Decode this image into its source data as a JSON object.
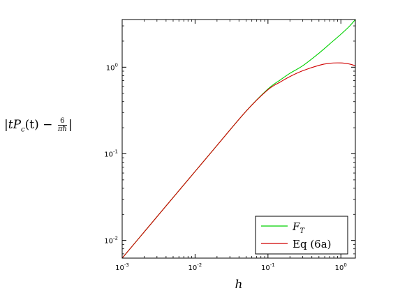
{
  "chart_data": {
    "type": "line",
    "xscale": "log",
    "yscale": "log",
    "xlim": [
      0.001,
      1.58
    ],
    "ylim": [
      0.00625,
      3.55
    ],
    "xlabel": "h",
    "ylabel": "|tP_c(t) − 6/(πh)|",
    "ylabel_parts": {
      "bars_open": "|",
      "t": "t",
      "P": "P",
      "sub": "c",
      "arg": "(t)",
      "minus": " − ",
      "num": "6",
      "den": "πħ",
      "bars_close": "|"
    },
    "xticks": [
      {
        "value": 0.001,
        "base": "10",
        "exp": "-3"
      },
      {
        "value": 0.01,
        "base": "10",
        "exp": "-2"
      },
      {
        "value": 0.1,
        "base": "10",
        "exp": "-1"
      },
      {
        "value": 1,
        "base": "10",
        "exp": "0"
      }
    ],
    "yticks": [
      {
        "value": 0.01,
        "base": "10",
        "exp": "-2"
      },
      {
        "value": 0.1,
        "base": "10",
        "exp": "-1"
      },
      {
        "value": 1,
        "base": "10",
        "exp": "0"
      }
    ],
    "legend": {
      "position": "bottom-right"
    },
    "series": [
      {
        "name": "F_T",
        "label_main": "F",
        "label_sub": "T",
        "color": "#00d000",
        "x": [
          0.001,
          0.002,
          0.005,
          0.01,
          0.02,
          0.05,
          0.1,
          0.15,
          0.2,
          0.3,
          0.5,
          0.7,
          1.0,
          1.3,
          1.58
        ],
        "y": [
          0.00625,
          0.0125,
          0.0313,
          0.0625,
          0.125,
          0.31,
          0.56,
          0.72,
          0.85,
          1.04,
          1.45,
          1.85,
          2.4,
          2.95,
          3.55
        ]
      },
      {
        "name": "Eq (6a)",
        "label_main": "Eq (6a)",
        "label_sub": "",
        "color": "#d00000",
        "x": [
          0.001,
          0.002,
          0.005,
          0.01,
          0.02,
          0.05,
          0.1,
          0.15,
          0.2,
          0.3,
          0.5,
          0.7,
          1.0,
          1.3,
          1.58
        ],
        "y": [
          0.00625,
          0.0125,
          0.0313,
          0.0625,
          0.125,
          0.31,
          0.55,
          0.68,
          0.78,
          0.91,
          1.05,
          1.11,
          1.12,
          1.09,
          1.04
        ]
      }
    ]
  }
}
